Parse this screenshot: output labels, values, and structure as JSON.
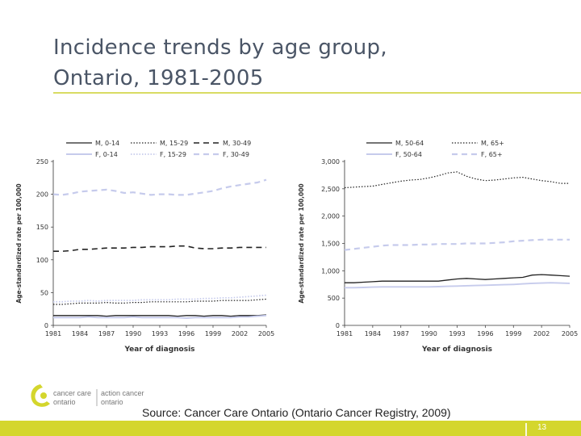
{
  "slide": {
    "title": "Incidence trends by age group,\nOntario, 1981-2005",
    "source": "Source: Cancer Care Ontario (Ontario Cancer Registry, 2009)",
    "page_number": "13",
    "logo": {
      "line1_left": "cancer care",
      "line2_left": "ontario",
      "line1_right": "action cancer",
      "line2_right": "ontario"
    },
    "colors": {
      "title": "#4a5566",
      "rule": "#d9dc63",
      "footer": "#d4d62d",
      "male": "#222222",
      "female": "#c6cbec",
      "logo_accent": "#d4d62d"
    }
  },
  "chart_data": [
    {
      "type": "line",
      "xlabel": "Year of diagnosis",
      "ylabel": "Age-standardized rate per 100,000",
      "ylim": [
        0,
        250
      ],
      "y_ticks": [
        "0",
        "50",
        "100",
        "150",
        "200",
        "250"
      ],
      "xlim": [
        1981,
        2005
      ],
      "x_ticks": [
        "1981",
        "1984",
        "1987",
        "1990",
        "1993",
        "1996",
        "1999",
        "2002",
        "2005"
      ],
      "grid": false,
      "legend": "top",
      "x": [
        1981,
        1982,
        1983,
        1984,
        1985,
        1986,
        1987,
        1988,
        1989,
        1990,
        1991,
        1992,
        1993,
        1994,
        1995,
        1996,
        1997,
        1998,
        1999,
        2000,
        2001,
        2002,
        2003,
        2004,
        2005
      ],
      "series": [
        {
          "name": "M, 0-14",
          "style": "solid",
          "sex": "M",
          "values": [
            15,
            15,
            15,
            15,
            15,
            15,
            14,
            15,
            15,
            15,
            15,
            15,
            15,
            15,
            14,
            15,
            15,
            14,
            15,
            15,
            14,
            15,
            15,
            15,
            16
          ]
        },
        {
          "name": "F, 0-14",
          "style": "solid",
          "sex": "F",
          "values": [
            12,
            12,
            12,
            12,
            13,
            12,
            12,
            12,
            12,
            13,
            12,
            12,
            12,
            12,
            12,
            11,
            12,
            12,
            12,
            12,
            12,
            13,
            13,
            14,
            15
          ]
        },
        {
          "name": "M, 15-29",
          "style": "dotted",
          "sex": "M",
          "values": [
            32,
            32,
            33,
            34,
            34,
            34,
            35,
            34,
            34,
            35,
            35,
            36,
            36,
            36,
            36,
            36,
            37,
            37,
            37,
            38,
            38,
            38,
            38,
            39,
            40
          ]
        },
        {
          "name": "F, 15-29",
          "style": "dotted",
          "sex": "F",
          "values": [
            36,
            36,
            37,
            37,
            38,
            37,
            38,
            38,
            38,
            38,
            39,
            39,
            39,
            39,
            40,
            40,
            40,
            41,
            41,
            42,
            42,
            43,
            44,
            45,
            46
          ]
        },
        {
          "name": "M, 30-49",
          "style": "dashed",
          "sex": "M",
          "values": [
            113,
            113,
            114,
            116,
            116,
            117,
            118,
            118,
            118,
            119,
            119,
            120,
            120,
            120,
            121,
            121,
            118,
            117,
            117,
            118,
            118,
            119,
            119,
            119,
            119
          ]
        },
        {
          "name": "F, 30-49",
          "style": "dashed",
          "sex": "F",
          "values": [
            200,
            199,
            201,
            204,
            205,
            206,
            207,
            205,
            202,
            203,
            201,
            199,
            200,
            200,
            199,
            199,
            201,
            203,
            205,
            209,
            212,
            214,
            216,
            218,
            222
          ]
        }
      ]
    },
    {
      "type": "line",
      "xlabel": "Year of diagnosis",
      "ylabel": "Age-standardized rate per 100,000",
      "ylim": [
        0,
        3000
      ],
      "y_ticks": [
        "0",
        "500",
        "1,000",
        "1,500",
        "2,000",
        "2,500",
        "3,000"
      ],
      "xlim": [
        1981,
        2005
      ],
      "x_ticks": [
        "1981",
        "1984",
        "1987",
        "1990",
        "1993",
        "1996",
        "1999",
        "2002",
        "2005"
      ],
      "grid": false,
      "legend": "top",
      "x": [
        1981,
        1982,
        1983,
        1984,
        1985,
        1986,
        1987,
        1988,
        1989,
        1990,
        1991,
        1992,
        1993,
        1994,
        1995,
        1996,
        1997,
        1998,
        1999,
        2000,
        2001,
        2002,
        2003,
        2004,
        2005
      ],
      "series": [
        {
          "name": "M, 50-64",
          "style": "solid",
          "sex": "M",
          "values": [
            780,
            780,
            790,
            800,
            810,
            810,
            810,
            810,
            810,
            810,
            810,
            830,
            850,
            860,
            850,
            840,
            850,
            860,
            870,
            880,
            920,
            930,
            920,
            910,
            900
          ]
        },
        {
          "name": "F, 50-64",
          "style": "solid",
          "sex": "F",
          "values": [
            690,
            690,
            695,
            700,
            705,
            705,
            705,
            705,
            705,
            705,
            710,
            715,
            720,
            725,
            730,
            735,
            740,
            745,
            750,
            760,
            770,
            775,
            780,
            775,
            770
          ]
        },
        {
          "name": "M, 65+",
          "style": "dotted",
          "sex": "M",
          "values": [
            2520,
            2530,
            2540,
            2550,
            2580,
            2610,
            2640,
            2660,
            2670,
            2700,
            2740,
            2790,
            2810,
            2730,
            2680,
            2650,
            2660,
            2680,
            2700,
            2710,
            2680,
            2650,
            2630,
            2600,
            2600
          ]
        },
        {
          "name": "F, 65+",
          "style": "dashed",
          "sex": "F",
          "values": [
            1380,
            1400,
            1420,
            1440,
            1460,
            1470,
            1470,
            1470,
            1480,
            1480,
            1490,
            1490,
            1490,
            1500,
            1500,
            1500,
            1510,
            1520,
            1540,
            1550,
            1560,
            1570,
            1570,
            1570,
            1570
          ]
        }
      ]
    }
  ]
}
